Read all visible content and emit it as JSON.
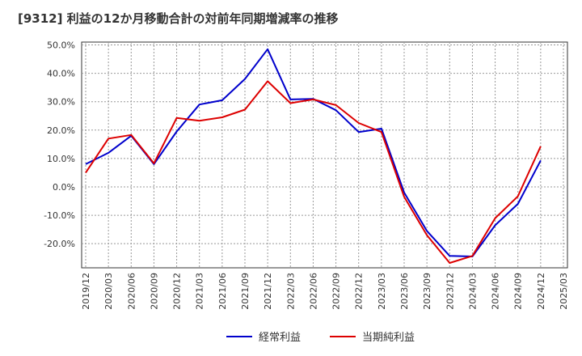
{
  "chart_data": {
    "type": "line",
    "title": "[9312]  利益の12か月移動合計の対前年同期増減率の推移",
    "xlabel": "",
    "ylabel": "",
    "ylim": [
      -28.5,
      51
    ],
    "yticks": [
      {
        "value": 50,
        "label": "50.0%"
      },
      {
        "value": 40,
        "label": "40.0%"
      },
      {
        "value": 30,
        "label": "30.0%"
      },
      {
        "value": 20,
        "label": "20.0%"
      },
      {
        "value": 10,
        "label": "10.0%"
      },
      {
        "value": 0,
        "label": "0.0%"
      },
      {
        "value": -10,
        "label": "-10.0%"
      },
      {
        "value": -20,
        "label": "-20.0%"
      }
    ],
    "categories": [
      "2019/12",
      "2020/03",
      "2020/06",
      "2020/09",
      "2020/12",
      "2021/03",
      "2021/06",
      "2021/09",
      "2021/12",
      "2022/03",
      "2022/06",
      "2022/09",
      "2022/12",
      "2023/03",
      "2023/06",
      "2023/09",
      "2023/12",
      "2024/03",
      "2024/06",
      "2024/09",
      "2024/12",
      "2025/03"
    ],
    "series": [
      {
        "name": "経常利益",
        "color": "#0000cc",
        "values": [
          8.0,
          12.0,
          18.0,
          8.0,
          19.5,
          29.0,
          30.5,
          38.0,
          48.5,
          30.8,
          31.0,
          27.0,
          19.3,
          20.5,
          -2.0,
          -15.5,
          -24.3,
          -24.5,
          -13.5,
          -6.0,
          9.3,
          null
        ]
      },
      {
        "name": "当期純利益",
        "color": "#dd0000",
        "values": [
          5.0,
          17.0,
          18.3,
          8.3,
          24.3,
          23.3,
          24.5,
          27.2,
          37.2,
          29.5,
          30.8,
          28.8,
          22.5,
          19.3,
          -3.5,
          -17.0,
          -26.8,
          -24.3,
          -11.0,
          -3.3,
          14.3,
          null
        ]
      }
    ],
    "grid": true,
    "legend_position": "bottom"
  }
}
